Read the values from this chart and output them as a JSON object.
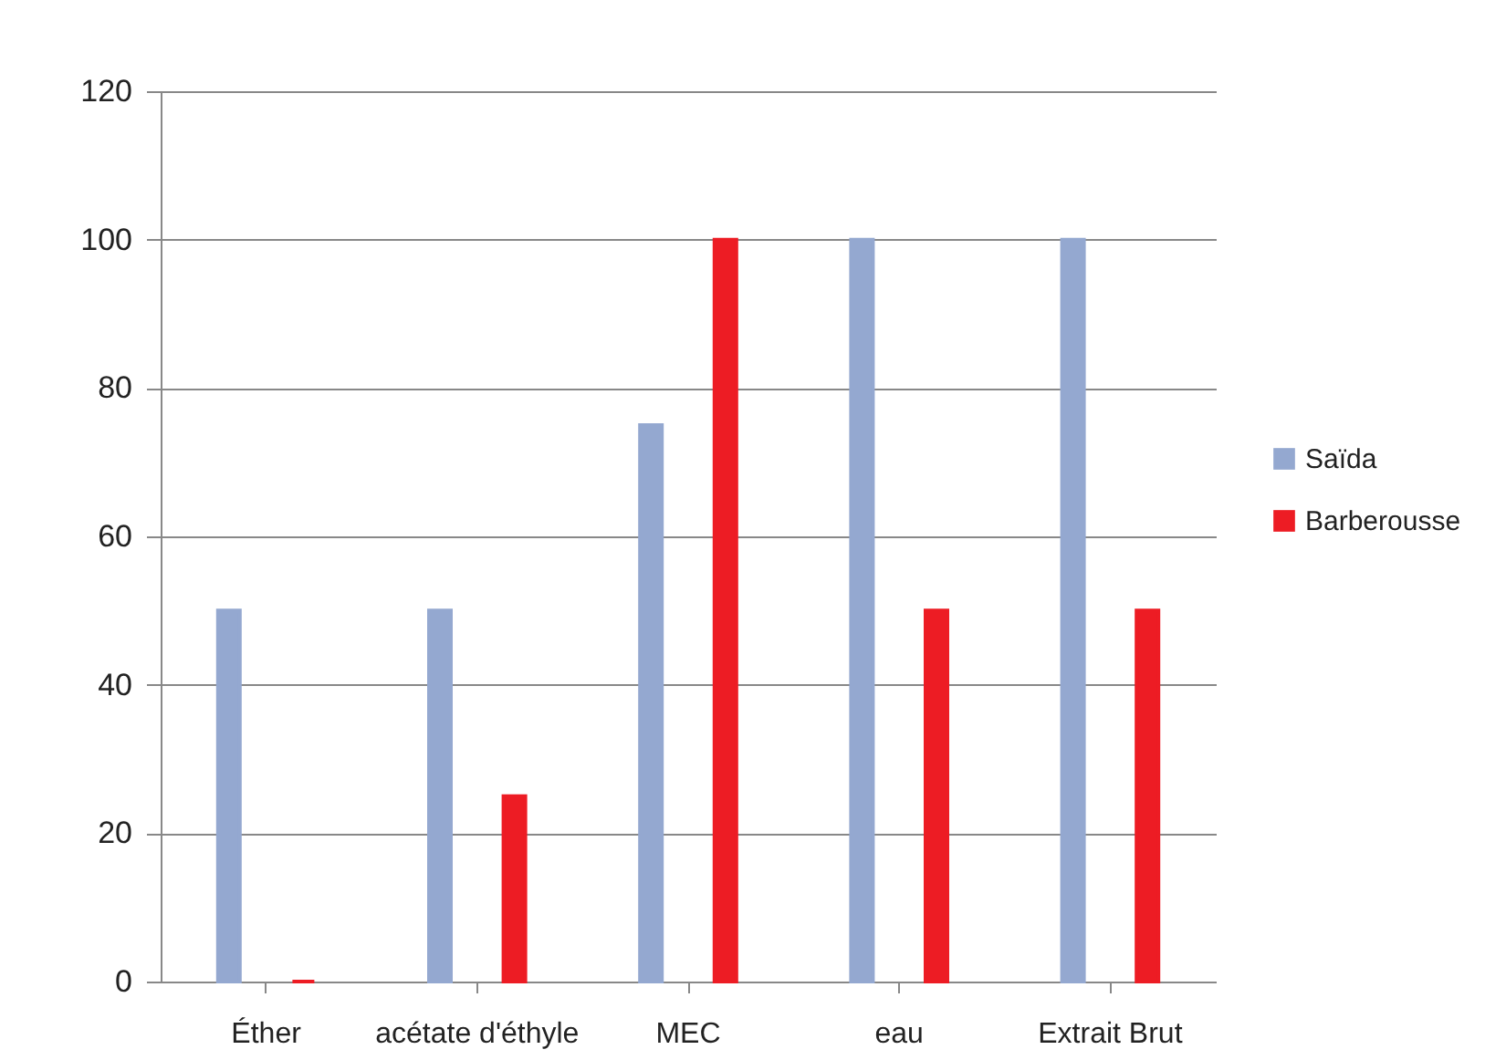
{
  "chart_data": {
    "type": "bar",
    "categories": [
      "Éther",
      "acétate d'éthyle",
      "MEC",
      "eau",
      "Extrait Brut"
    ],
    "series": [
      {
        "name": "Saïda",
        "color": "#94a8d0",
        "values": [
          50,
          50,
          75,
          100,
          100
        ]
      },
      {
        "name": "Barberousse",
        "color": "#ed1c24",
        "values": [
          0,
          25,
          100,
          50,
          50
        ]
      }
    ],
    "ylim": [
      0,
      120
    ],
    "yticks": [
      0,
      20,
      40,
      60,
      80,
      100,
      120
    ],
    "grid": "y",
    "legend": "right"
  }
}
